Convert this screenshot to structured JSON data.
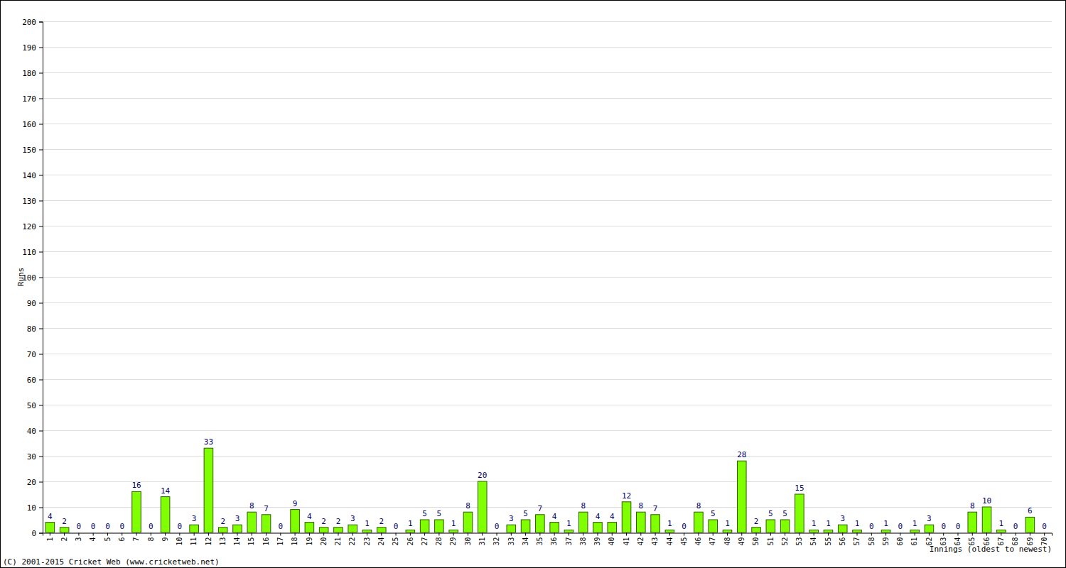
{
  "chart_data": {
    "type": "bar",
    "x_label": "Innings (oldest to newest)",
    "y_label": "Runs",
    "annotations": [
      "(C) 2001-2015 Cricket Web (www.cricketweb.net)"
    ],
    "categories": [
      "1",
      "2",
      "3",
      "4",
      "5",
      "6",
      "7",
      "8",
      "9",
      "10",
      "11",
      "12",
      "13",
      "14",
      "15",
      "16",
      "17",
      "18",
      "19",
      "20",
      "21",
      "22",
      "23",
      "24",
      "25",
      "26",
      "27",
      "28",
      "29",
      "30",
      "31",
      "32",
      "33",
      "34",
      "35",
      "36",
      "37",
      "38",
      "39",
      "40",
      "41",
      "42",
      "43",
      "44",
      "45",
      "46",
      "47",
      "48",
      "49",
      "50",
      "51",
      "52",
      "53",
      "54",
      "55",
      "56",
      "57",
      "58",
      "59",
      "60",
      "61",
      "62",
      "63",
      "64",
      "65",
      "66",
      "67",
      "68",
      "69",
      "70"
    ],
    "values": [
      4,
      2,
      0,
      0,
      0,
      0,
      16,
      0,
      14,
      0,
      3,
      33,
      2,
      3,
      8,
      7,
      0,
      9,
      4,
      2,
      2,
      3,
      1,
      2,
      0,
      1,
      5,
      5,
      1,
      8,
      20,
      0,
      3,
      5,
      7,
      4,
      1,
      8,
      4,
      4,
      12,
      8,
      7,
      1,
      0,
      8,
      5,
      1,
      28,
      2,
      5,
      5,
      15,
      1,
      1,
      3,
      1,
      0,
      1,
      0,
      1,
      3,
      0,
      0,
      8,
      10,
      1,
      0,
      6,
      0
    ],
    "color": "#80ff00",
    "ylim": [
      0,
      200
    ],
    "yticks": [
      0,
      10,
      20,
      30,
      40,
      50,
      60,
      70,
      80,
      90,
      100,
      110,
      120,
      130,
      140,
      150,
      160,
      170,
      180,
      190,
      200
    ],
    "grid": true,
    "data_labels": true
  }
}
